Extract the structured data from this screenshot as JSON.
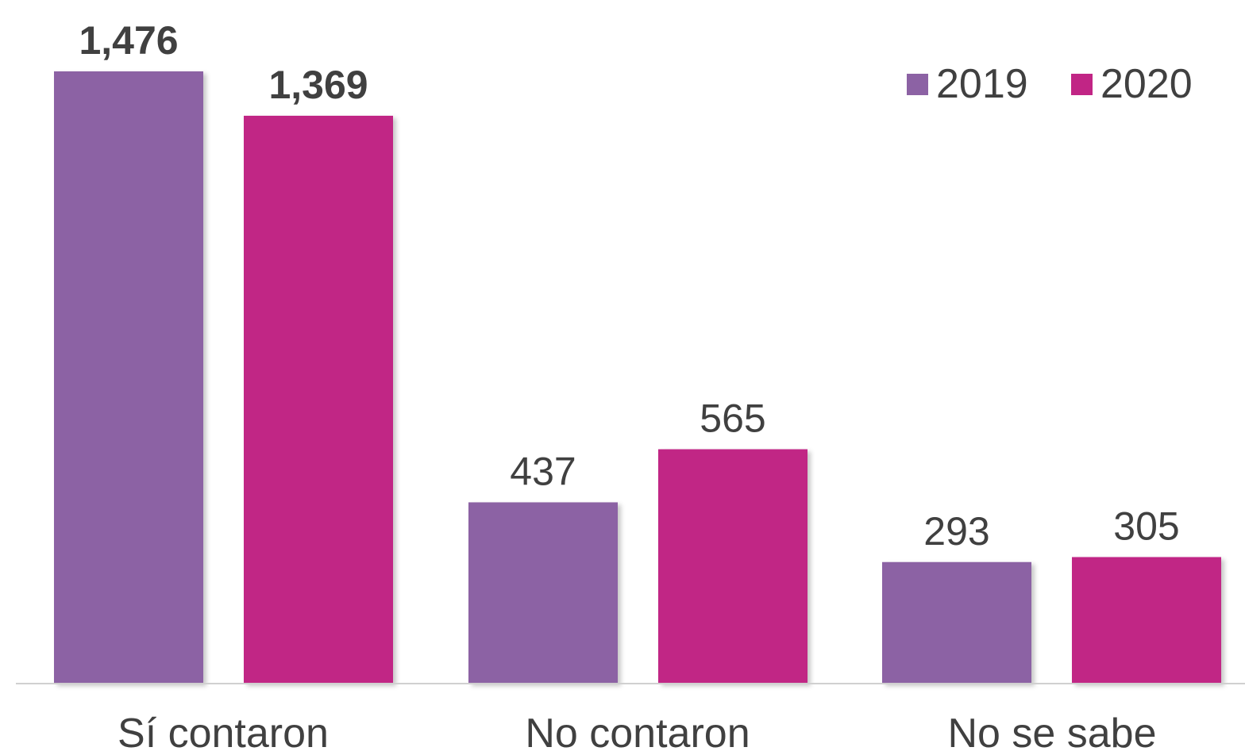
{
  "chart_data": {
    "type": "bar",
    "categories": [
      "Sí contaron",
      "No contaron",
      "No se sabe"
    ],
    "series": [
      {
        "name": "2019",
        "values": [
          1476,
          437,
          293
        ],
        "color": "#8c62a4"
      },
      {
        "name": "2020",
        "values": [
          1369,
          565,
          305
        ],
        "color": "#c12585"
      }
    ],
    "data_labels": [
      [
        "1,476",
        "437",
        "293"
      ],
      [
        "1,369",
        "565",
        "305"
      ]
    ],
    "bold_labels": [
      [
        true,
        false,
        false
      ],
      [
        true,
        false,
        false
      ]
    ],
    "ylim": [
      0,
      1476
    ],
    "legend_position": "top-right",
    "grid": false
  }
}
